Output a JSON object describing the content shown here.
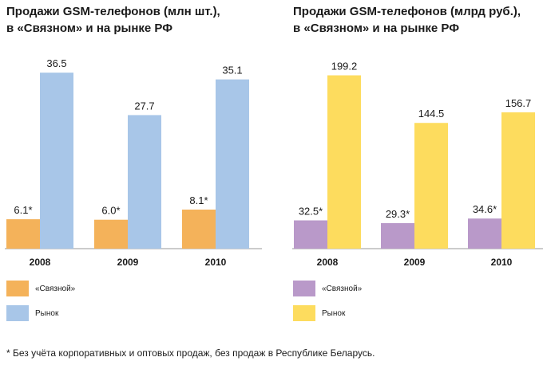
{
  "charts": [
    {
      "title_line1": "Продажи GSM-телефонов (млн шт.),",
      "title_line2": "в «Связном» и на рынке РФ",
      "legend": [
        {
          "label": "«Связной»",
          "color": "#f4b25a"
        },
        {
          "label": "Рынок",
          "color": "#a8c6e8"
        }
      ]
    },
    {
      "title_line1": "Продажи GSM-телефонов (млрд руб.),",
      "title_line2": "в «Связном» и на рынке РФ",
      "legend": [
        {
          "label": "«Связной»",
          "color": "#b999c9"
        },
        {
          "label": "Рынок",
          "color": "#fddc5e"
        }
      ]
    }
  ],
  "chart_data": [
    {
      "type": "bar",
      "title": "Продажи GSM-телефонов (млн шт.), в «Связном» и на рынке РФ",
      "categories": [
        "2008",
        "2009",
        "2010"
      ],
      "series": [
        {
          "name": "«Связной»",
          "values": [
            6.1,
            6.0,
            8.1
          ],
          "labels": [
            "6.1*",
            "6.0*",
            "8.1*"
          ],
          "color": "#f4b25a"
        },
        {
          "name": "Рынок",
          "values": [
            36.5,
            27.7,
            35.1
          ],
          "labels": [
            "36.5",
            "27.7",
            "35.1"
          ],
          "color": "#a8c6e8"
        }
      ],
      "ylim": [
        0,
        40
      ]
    },
    {
      "type": "bar",
      "title": "Продажи GSM-телефонов (млрд руб.), в «Связном» и на рынке РФ",
      "categories": [
        "2008",
        "2009",
        "2010"
      ],
      "series": [
        {
          "name": "«Связной»",
          "values": [
            32.5,
            29.3,
            34.6
          ],
          "labels": [
            "32.5*",
            "29.3*",
            "34.6*"
          ],
          "color": "#b999c9"
        },
        {
          "name": "Рынок",
          "values": [
            199.2,
            144.5,
            156.7
          ],
          "labels": [
            "199.2",
            "144.5",
            "156.7"
          ],
          "color": "#fddc5e"
        }
      ],
      "ylim": [
        0,
        218
      ]
    }
  ],
  "footnote": "* Без учёта корпоративных и оптовых продаж, без продаж в Республике Беларусь."
}
